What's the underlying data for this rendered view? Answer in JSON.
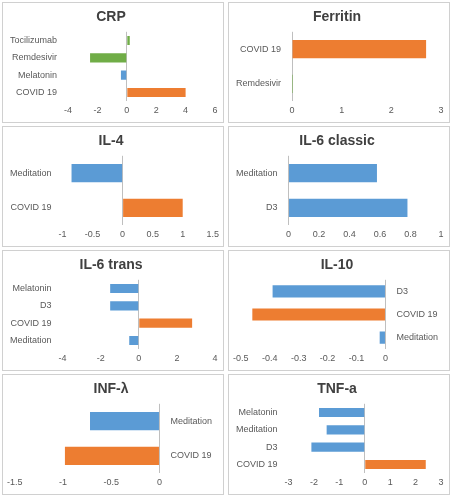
{
  "chart_data": [
    {
      "type": "bar",
      "orientation": "horizontal",
      "title": "CRP",
      "categories": [
        "Tocilizumab",
        "Remdesivir",
        "Melatonin",
        "COVID 19"
      ],
      "values": [
        0.2,
        -2.5,
        -0.4,
        4
      ],
      "colors": [
        "#70ad47",
        "#70ad47",
        "#5b9bd5",
        "#ed7d31"
      ],
      "xlim": [
        -4,
        6
      ],
      "xticks": [
        -4,
        -2,
        0,
        2,
        4,
        6
      ],
      "grid": false
    },
    {
      "type": "bar",
      "orientation": "horizontal",
      "title": "Ferritin",
      "categories": [
        "COVID 19",
        "Remdesivir"
      ],
      "values": [
        2.7,
        0.02
      ],
      "colors": [
        "#ed7d31",
        "#70ad47"
      ],
      "xlim": [
        0,
        3
      ],
      "xticks": [
        0,
        1,
        2,
        3
      ],
      "grid": false
    },
    {
      "type": "bar",
      "orientation": "horizontal",
      "title": "IL-4",
      "categories": [
        "Meditation",
        "COVID 19"
      ],
      "values": [
        -0.85,
        1.0
      ],
      "colors": [
        "#5b9bd5",
        "#ed7d31"
      ],
      "xlim": [
        -1,
        1.5
      ],
      "xticks": [
        -1,
        -0.5,
        0,
        0.5,
        1,
        1.5
      ],
      "grid": false
    },
    {
      "type": "bar",
      "orientation": "horizontal",
      "title": "IL-6 classic",
      "categories": [
        "Meditation",
        "D3"
      ],
      "values": [
        0.58,
        0.78
      ],
      "colors": [
        "#5b9bd5",
        "#5b9bd5"
      ],
      "xlim": [
        0,
        1
      ],
      "xticks": [
        0,
        0.2,
        0.4,
        0.6,
        0.8,
        1
      ],
      "grid": false
    },
    {
      "type": "bar",
      "orientation": "horizontal",
      "title": "IL-6 trans",
      "categories": [
        "Melatonin",
        "D3",
        "COVID 19",
        "Meditation"
      ],
      "values": [
        -1.5,
        -1.5,
        2.8,
        -0.5
      ],
      "colors": [
        "#5b9bd5",
        "#5b9bd5",
        "#ed7d31",
        "#5b9bd5"
      ],
      "xlim": [
        -4,
        4
      ],
      "xticks": [
        -4,
        -2,
        0,
        2,
        4
      ],
      "grid": false
    },
    {
      "type": "bar",
      "orientation": "horizontal",
      "title": "IL-10",
      "categories": [
        "D3",
        "COVID 19",
        "Meditation"
      ],
      "values": [
        -0.39,
        -0.46,
        -0.02
      ],
      "colors": [
        "#5b9bd5",
        "#ed7d31",
        "#5b9bd5"
      ],
      "xlim": [
        -0.5,
        0
      ],
      "xticks": [
        -0.5,
        -0.4,
        -0.3,
        -0.2,
        -0.1,
        0
      ],
      "grid": false
    },
    {
      "type": "bar",
      "orientation": "horizontal",
      "title": "INF-λ",
      "categories": [
        "Meditation",
        "COVID 19"
      ],
      "values": [
        -0.72,
        -0.98
      ],
      "colors": [
        "#5b9bd5",
        "#ed7d31"
      ],
      "xlim": [
        -1.5,
        0
      ],
      "xticks": [
        -1.5,
        -1,
        -0.5,
        0
      ],
      "grid": false
    },
    {
      "type": "bar",
      "orientation": "horizontal",
      "title": "TNF-a",
      "categories": [
        "Melatonin",
        "Meditation",
        "D3",
        "COVID 19"
      ],
      "values": [
        -1.8,
        -1.5,
        -2.1,
        2.4
      ],
      "colors": [
        "#5b9bd5",
        "#5b9bd5",
        "#5b9bd5",
        "#ed7d31"
      ],
      "xlim": [
        -3,
        3
      ],
      "xticks": [
        -3,
        -2,
        -1,
        0,
        1,
        2,
        3
      ],
      "grid": false
    }
  ]
}
